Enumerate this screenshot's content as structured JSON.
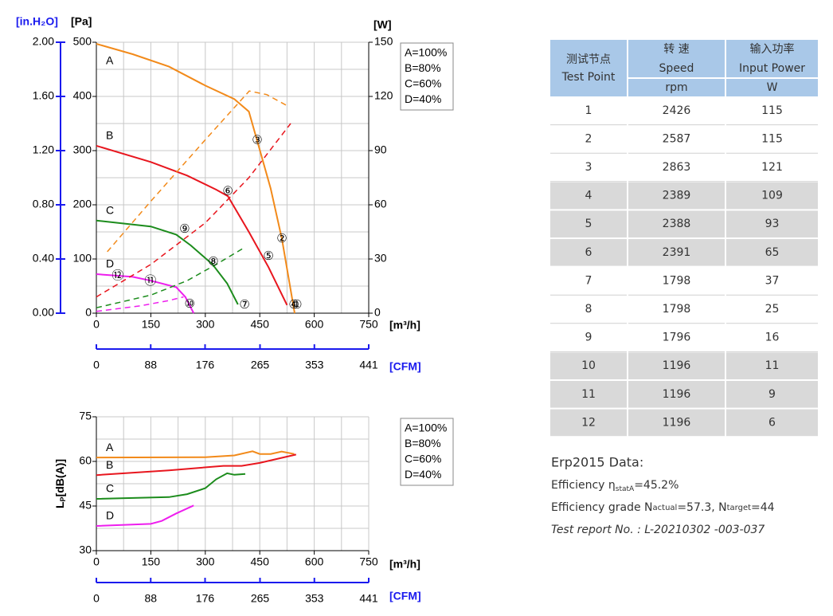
{
  "chart_data": [
    {
      "type": "line",
      "xlabel": "[m³/h]",
      "xlim": [
        0,
        750
      ],
      "xticks": [
        0,
        150,
        300,
        450,
        600,
        750
      ],
      "x2label": "[CFM]",
      "x2lim": [
        0,
        441
      ],
      "x2ticks": [
        0,
        88,
        176,
        265,
        353,
        441
      ],
      "ylabel": "[Pa]",
      "ylim": [
        0,
        500
      ],
      "yticks": [
        0,
        100,
        200,
        300,
        400,
        500
      ],
      "y3label": "[in.H₂O]",
      "y3lim": [
        0,
        2.0
      ],
      "y3ticks": [
        {
          "value": 0,
          "label": "0.00"
        },
        {
          "value": 0.4,
          "label": "0.40"
        },
        {
          "value": 0.8,
          "label": "0.80"
        },
        {
          "value": 1.2,
          "label": "1.20"
        },
        {
          "value": 1.6,
          "label": "1.60"
        },
        {
          "value": 2.0,
          "label": "2.00"
        }
      ],
      "y2label": "[W]",
      "y2lim": [
        0,
        150
      ],
      "y2ticks": [
        0,
        30,
        60,
        90,
        120,
        150
      ],
      "grid": true,
      "series": [
        {
          "name": "A=100%",
          "label": "A",
          "color": "#f28a1a",
          "x": [
            0,
            100,
            200,
            300,
            380,
            420,
            443,
            480,
            511,
            546
          ],
          "values": [
            497,
            478,
            455,
            420,
            395,
            372,
            318,
            230,
            137,
            0
          ]
        },
        {
          "name": "B=80%",
          "label": "B",
          "color": "#e8161e",
          "x": [
            0,
            150,
            250,
            330,
            362,
            420,
            474,
            525
          ],
          "values": [
            309,
            279,
            254,
            228,
            216,
            150,
            85,
            15
          ]
        },
        {
          "name": "C=60%",
          "label": "C",
          "color": "#1c8c1c",
          "x": [
            0,
            150,
            220,
            260,
            320,
            360,
            390
          ],
          "values": [
            171,
            160,
            145,
            125,
            90,
            55,
            16
          ]
        },
        {
          "name": "D=40%",
          "label": "D",
          "color": "#ee1eee",
          "x": [
            0,
            100,
            150,
            220,
            245,
            268
          ],
          "values": [
            72,
            67,
            60,
            48,
            30,
            0
          ]
        },
        {
          "axis": "y2",
          "dash": true,
          "color": "#f28a1a",
          "x": [
            30,
            150,
            300,
            421,
            469,
            524
          ],
          "values": [
            34,
            62,
            96,
            123,
            121,
            115
          ]
        },
        {
          "axis": "y2",
          "dash": true,
          "color": "#e8161e",
          "x": [
            0,
            150,
            300,
            420,
            535
          ],
          "values": [
            9,
            27,
            50,
            75,
            105
          ]
        },
        {
          "axis": "y2",
          "dash": true,
          "color": "#1c8c1c",
          "x": [
            0,
            150,
            250,
            330,
            405
          ],
          "values": [
            3,
            10,
            18,
            27,
            36
          ]
        },
        {
          "axis": "y2",
          "dash": true,
          "color": "#ee1eee",
          "x": [
            0,
            120,
            200,
            240
          ],
          "values": [
            1,
            4,
            7,
            9
          ]
        }
      ],
      "points": [
        {
          "label": "①",
          "x": 552,
          "y": 15
        },
        {
          "label": "②",
          "x": 511,
          "y": 137
        },
        {
          "label": "③",
          "x": 443,
          "y": 318
        },
        {
          "label": "④",
          "x": 544,
          "y": 15
        },
        {
          "label": "⑤",
          "x": 474,
          "y": 104
        },
        {
          "label": "⑥",
          "x": 362,
          "y": 224
        },
        {
          "label": "⑦",
          "x": 408,
          "y": 15
        },
        {
          "label": "⑧",
          "x": 322,
          "y": 94
        },
        {
          "label": "⑨",
          "x": 243,
          "y": 154
        },
        {
          "label": "⑩",
          "x": 257,
          "y": 16
        },
        {
          "label": "⑪",
          "x": 149,
          "y": 59
        },
        {
          "label": "⑫",
          "x": 59,
          "y": 68
        }
      ]
    },
    {
      "type": "line",
      "xlabel": "[m³/h]",
      "xlim": [
        0,
        750
      ],
      "xticks": [
        0,
        150,
        300,
        450,
        600,
        750
      ],
      "x2label": "[CFM]",
      "x2lim": [
        0,
        441
      ],
      "x2ticks": [
        0,
        88,
        176,
        265,
        353,
        441
      ],
      "ylabel": [
        "L",
        "P",
        "[dB(A)]"
      ],
      "ylim": [
        30,
        75
      ],
      "yticks": [
        30,
        45,
        60,
        75
      ],
      "grid": true,
      "series": [
        {
          "name": "A=100%",
          "label": "A",
          "color": "#f28a1a",
          "x": [
            0,
            300,
            380,
            430,
            450,
            480,
            510,
            545
          ],
          "values": [
            61.3,
            61.4,
            62,
            63.4,
            62.5,
            62.5,
            63.3,
            62.5
          ]
        },
        {
          "name": "B=80%",
          "label": "B",
          "color": "#e8161e",
          "x": [
            0,
            200,
            350,
            400,
            450,
            550
          ],
          "values": [
            55.4,
            57,
            58.5,
            58.5,
            59.5,
            62.3
          ]
        },
        {
          "name": "C=60%",
          "label": "C",
          "color": "#1c8c1c",
          "x": [
            0,
            200,
            250,
            300,
            330,
            360,
            380,
            410
          ],
          "values": [
            47.4,
            48,
            49,
            51,
            54,
            56,
            55.5,
            55.8
          ]
        },
        {
          "name": "D=40%",
          "label": "D",
          "color": "#ee1eee",
          "x": [
            0,
            150,
            180,
            220,
            268
          ],
          "values": [
            38.3,
            39,
            40,
            42.5,
            45.2
          ]
        }
      ]
    }
  ],
  "table": {
    "header_color": "#a9c8e8",
    "band_color": "#d9d9d9",
    "headers": [
      [
        "测试节点",
        "Test Point"
      ],
      [
        "转 速",
        "Speed",
        "rpm"
      ],
      [
        "输入功率",
        "Input Power",
        "W"
      ]
    ],
    "rows": [
      [
        1,
        2426,
        115
      ],
      [
        2,
        2587,
        115
      ],
      [
        3,
        2863,
        121
      ],
      [
        4,
        2389,
        109
      ],
      [
        5,
        2388,
        93
      ],
      [
        6,
        2391,
        65
      ],
      [
        7,
        1798,
        37
      ],
      [
        8,
        1798,
        25
      ],
      [
        9,
        1796,
        16
      ],
      [
        10,
        1196,
        11
      ],
      [
        11,
        1196,
        9
      ],
      [
        12,
        1196,
        6
      ]
    ]
  },
  "erp": {
    "title": "Erp2015  Data:",
    "efficiency": [
      "Efficiency  η",
      "statA",
      "=45.2%"
    ],
    "grade": [
      "Efficiency grade  N",
      "actual",
      "=57.3, N",
      "target",
      "=44"
    ],
    "report": "Test report No. : L-20210302 -003-037"
  }
}
